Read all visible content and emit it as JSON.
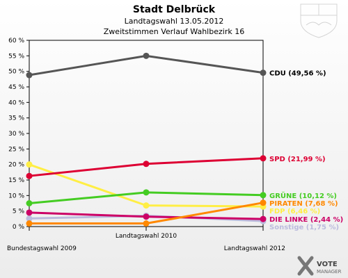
{
  "header": {
    "title": "Stadt Delbrück",
    "subtitle": "Landtagswahl 13.05.2012",
    "subtitle2": "Zweitstimmen Verlauf Wahlbezirk 16"
  },
  "branding": {
    "logo_text": "VOTE",
    "logo_sub": "MANAGER",
    "coat_of_arms_icon": "nrw-coat-of-arms-icon",
    "logo_icon": "vote-manager-x-icon"
  },
  "chart_data": {
    "type": "line",
    "title": "Stadt Delbrück",
    "x": [
      "Bundestagswahl 2009",
      "Landtagswahl 2010",
      "Landtagswahl 2012"
    ],
    "xlabel": "",
    "ylabel": "",
    "ylim": [
      0,
      60
    ],
    "yticks": [
      0,
      5,
      10,
      15,
      20,
      25,
      30,
      35,
      40,
      45,
      50,
      55,
      60
    ],
    "ytick_labels": [
      "0 %",
      "5 %",
      "10 %",
      "15 %",
      "20 %",
      "25 %",
      "30 %",
      "35 %",
      "40 %",
      "45 %",
      "50 %",
      "55 %",
      "60 %"
    ],
    "grid": false,
    "series": [
      {
        "name": "CDU",
        "values": [
          48.8,
          55.0,
          49.56
        ],
        "color": "#555555",
        "end_label": "CDU (49,56 %)"
      },
      {
        "name": "SPD",
        "values": [
          16.3,
          20.2,
          21.99
        ],
        "color": "#dd0033",
        "end_label": "SPD (21,99 %)"
      },
      {
        "name": "GRÜNE",
        "values": [
          7.5,
          11.0,
          10.12
        ],
        "color": "#44cc22",
        "end_label": "GRÜNE (10,12 %)"
      },
      {
        "name": "PIRATEN",
        "values": [
          1.0,
          1.0,
          7.68
        ],
        "color": "#ff8800",
        "end_label": "PIRATEN (7,68 %)"
      },
      {
        "name": "FDP",
        "values": [
          20.0,
          6.8,
          6.46
        ],
        "color": "#ffee44",
        "end_label": "FDP (6,46 %)"
      },
      {
        "name": "DIE LINKE",
        "values": [
          4.5,
          3.2,
          2.44
        ],
        "color": "#cc0066",
        "end_label": "DIE LINKE (2,44 %)"
      },
      {
        "name": "Sonstige",
        "values": [
          2.6,
          3.5,
          1.75
        ],
        "color": "#bbbbdd",
        "end_label": "Sonstige (1,75 %)"
      }
    ]
  }
}
